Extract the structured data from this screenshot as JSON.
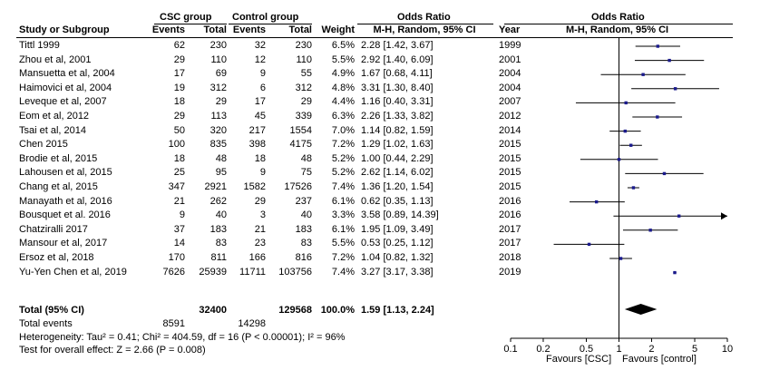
{
  "header": {
    "group1": "CSC group",
    "group2": "Control group",
    "or_left": "Odds Ratio",
    "or_right": "Odds Ratio",
    "study_col": "Study or Subgroup",
    "events1": "Events",
    "total1": "Total",
    "events2": "Events",
    "total2": "Total",
    "weight": "Weight",
    "mh_left": "M-H, Random, 95% CI",
    "year": "Year",
    "mh_right": "M-H, Random, 95% CI"
  },
  "studies": [
    {
      "name": "Tittl 1999",
      "e1": "62",
      "t1": "230",
      "e2": "32",
      "t2": "230",
      "w": "6.5%",
      "ci": "2.28 [1.42, 3.67]",
      "year": "1999"
    },
    {
      "name": "Zhou et al, 2001",
      "e1": "29",
      "t1": "110",
      "e2": "12",
      "t2": "110",
      "w": "5.5%",
      "ci": "2.92 [1.40, 6.09]",
      "year": "2001"
    },
    {
      "name": "Mansuetta et al, 2004",
      "e1": "17",
      "t1": "69",
      "e2": "9",
      "t2": "55",
      "w": "4.9%",
      "ci": "1.67 [0.68, 4.11]",
      "year": "2004"
    },
    {
      "name": "Haimovici et al, 2004",
      "e1": "19",
      "t1": "312",
      "e2": "6",
      "t2": "312",
      "w": "4.8%",
      "ci": "3.31 [1.30, 8.40]",
      "year": "2004"
    },
    {
      "name": "Leveque et al, 2007",
      "e1": "18",
      "t1": "29",
      "e2": "17",
      "t2": "29",
      "w": "4.4%",
      "ci": "1.16 [0.40, 3.31]",
      "year": "2007"
    },
    {
      "name": "Eom et al, 2012",
      "e1": "29",
      "t1": "113",
      "e2": "45",
      "t2": "339",
      "w": "6.3%",
      "ci": "2.26 [1.33, 3.82]",
      "year": "2012"
    },
    {
      "name": "Tsai et al, 2014",
      "e1": "50",
      "t1": "320",
      "e2": "217",
      "t2": "1554",
      "w": "7.0%",
      "ci": "1.14 [0.82, 1.59]",
      "year": "2014"
    },
    {
      "name": "Chen 2015",
      "e1": "100",
      "t1": "835",
      "e2": "398",
      "t2": "4175",
      "w": "7.2%",
      "ci": "1.29 [1.02, 1.63]",
      "year": "2015"
    },
    {
      "name": "Brodie et al, 2015",
      "e1": "18",
      "t1": "48",
      "e2": "18",
      "t2": "48",
      "w": "5.2%",
      "ci": "1.00 [0.44, 2.29]",
      "year": "2015"
    },
    {
      "name": "Lahousen et al, 2015",
      "e1": "25",
      "t1": "95",
      "e2": "9",
      "t2": "75",
      "w": "5.2%",
      "ci": "2.62 [1.14, 6.02]",
      "year": "2015"
    },
    {
      "name": "Chang et al, 2015",
      "e1": "347",
      "t1": "2921",
      "e2": "1582",
      "t2": "17526",
      "w": "7.4%",
      "ci": "1.36 [1.20, 1.54]",
      "year": "2015"
    },
    {
      "name": "Manayath et al, 2016",
      "e1": "21",
      "t1": "262",
      "e2": "29",
      "t2": "237",
      "w": "6.1%",
      "ci": "0.62 [0.35, 1.13]",
      "year": "2016"
    },
    {
      "name": "Bousquet et al. 2016",
      "e1": "9",
      "t1": "40",
      "e2": "3",
      "t2": "40",
      "w": "3.3%",
      "ci": "3.58 [0.89, 14.39]",
      "year": "2016"
    },
    {
      "name": "Chatziralli 2017",
      "e1": "37",
      "t1": "183",
      "e2": "21",
      "t2": "183",
      "w": "6.1%",
      "ci": "1.95 [1.09, 3.49]",
      "year": "2017"
    },
    {
      "name": "Mansour et al, 2017",
      "e1": "14",
      "t1": "83",
      "e2": "23",
      "t2": "83",
      "w": "5.5%",
      "ci": "0.53 [0.25, 1.12]",
      "year": "2017"
    },
    {
      "name": "Ersoz et al, 2018",
      "e1": "170",
      "t1": "811",
      "e2": "166",
      "t2": "816",
      "w": "7.2%",
      "ci": "1.04 [0.82, 1.32]",
      "year": "2018"
    },
    {
      "name": "Yu-Yen Chen et al, 2019",
      "e1": "7626",
      "t1": "25939",
      "e2": "11711",
      "t2": "103756",
      "w": "7.4%",
      "ci": "3.27 [3.17, 3.38]",
      "year": "2019"
    }
  ],
  "total": {
    "label": "Total (95% CI)",
    "t1": "32400",
    "t2": "129568",
    "w": "100.0%",
    "ci": "1.59 [1.13, 2.24]"
  },
  "total_events": {
    "label": "Total events",
    "e1": "8591",
    "e2": "14298"
  },
  "heterogeneity": "Heterogeneity: Tau² = 0.41; Chi² = 404.59, df = 16 (P < 0.00001); I² = 96%",
  "overall_effect": "Test for overall effect: Z = 2.66 (P = 0.008)",
  "favours_left": "Favours [CSC]",
  "favours_right": "Favours [control]",
  "chart_data": {
    "type": "forest",
    "xscale": "log",
    "xlim": [
      0.1,
      10
    ],
    "reference_line": 1,
    "xticks": [
      {
        "v": 0.1,
        "label": "0.1"
      },
      {
        "v": 0.2,
        "label": "0.2"
      },
      {
        "v": 0.5,
        "label": "0.5"
      },
      {
        "v": 1,
        "label": "1"
      },
      {
        "v": 2,
        "label": "2"
      },
      {
        "v": 5,
        "label": "5"
      },
      {
        "v": 10,
        "label": "10"
      }
    ],
    "points": [
      {
        "or": 2.28,
        "lo": 1.42,
        "hi": 3.67
      },
      {
        "or": 2.92,
        "lo": 1.4,
        "hi": 6.09
      },
      {
        "or": 1.67,
        "lo": 0.68,
        "hi": 4.11
      },
      {
        "or": 3.31,
        "lo": 1.3,
        "hi": 8.4
      },
      {
        "or": 1.16,
        "lo": 0.4,
        "hi": 3.31
      },
      {
        "or": 2.26,
        "lo": 1.33,
        "hi": 3.82
      },
      {
        "or": 1.14,
        "lo": 0.82,
        "hi": 1.59
      },
      {
        "or": 1.29,
        "lo": 1.02,
        "hi": 1.63
      },
      {
        "or": 1.0,
        "lo": 0.44,
        "hi": 2.29
      },
      {
        "or": 2.62,
        "lo": 1.14,
        "hi": 6.02
      },
      {
        "or": 1.36,
        "lo": 1.2,
        "hi": 1.54
      },
      {
        "or": 0.62,
        "lo": 0.35,
        "hi": 1.13
      },
      {
        "or": 3.58,
        "lo": 0.89,
        "hi": 14.39
      },
      {
        "or": 1.95,
        "lo": 1.09,
        "hi": 3.49
      },
      {
        "or": 0.53,
        "lo": 0.25,
        "hi": 1.12
      },
      {
        "or": 1.04,
        "lo": 0.82,
        "hi": 1.32
      },
      {
        "or": 3.27,
        "lo": 3.17,
        "hi": 3.38
      }
    ],
    "overall": {
      "or": 1.59,
      "lo": 1.13,
      "hi": 2.24
    },
    "marker_color": "#1a1a8c"
  }
}
